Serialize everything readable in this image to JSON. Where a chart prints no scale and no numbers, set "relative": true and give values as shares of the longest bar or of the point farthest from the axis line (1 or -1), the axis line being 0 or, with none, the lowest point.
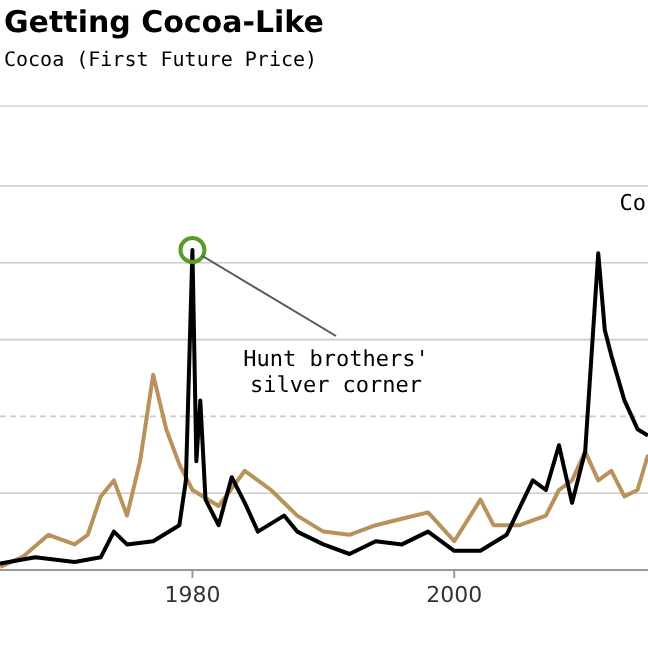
{
  "chart_data": {
    "type": "line",
    "title": "Getting Cocoa-Like",
    "subtitle": "Cocoa (First Future Price)",
    "relative": true,
    "ref_lines": [
      {
        "axis": "y",
        "value": 0.48,
        "line_style": "dashed",
        "color": "#cccccc"
      }
    ],
    "grid": "y",
    "xlim": [
      1965.3,
      2014.8
    ],
    "xticks": [
      1980,
      2000
    ],
    "annotations": [
      {
        "text": "Hunt brothers' silver corner",
        "x": 1980,
        "y": 1
      },
      "Co"
    ],
    "series": [
      {
        "color": "#b8925a",
        "x": [
          1965.3,
          1967,
          1969,
          1971,
          1972,
          1973,
          1974,
          1975,
          1976,
          1977,
          1978,
          1979,
          1980,
          1982,
          1984,
          1986,
          1988,
          1990,
          1992,
          1994,
          1996,
          1998,
          2000,
          2002,
          2003,
          2005,
          2007,
          2008,
          2009,
          2010,
          2011,
          2012,
          2013,
          2014,
          2014.8
        ],
        "values": [
          0.01,
          0.04,
          0.11,
          0.08,
          0.11,
          0.23,
          0.28,
          0.17,
          0.34,
          0.61,
          0.44,
          0.33,
          0.25,
          0.2,
          0.31,
          0.25,
          0.17,
          0.12,
          0.11,
          0.14,
          0.16,
          0.18,
          0.09,
          0.22,
          0.14,
          0.14,
          0.17,
          0.25,
          0.28,
          0.37,
          0.28,
          0.31,
          0.23,
          0.25,
          0.36
        ]
      },
      {
        "color": "#000000",
        "x": [
          1965.3,
          1968,
          1971,
          1973,
          1974,
          1975,
          1977,
          1979,
          1979.5,
          1980,
          1980.3,
          1980.6,
          1981,
          1982,
          1983,
          1984,
          1985,
          1987,
          1988,
          1990,
          1992,
          1994,
          1996,
          1998,
          2000,
          2002,
          2004,
          2006,
          2007,
          2008,
          2009,
          2010,
          2011,
          2011.5,
          2012,
          2013,
          2014,
          2014.8
        ],
        "values": [
          0.02,
          0.04,
          0.025,
          0.04,
          0.12,
          0.08,
          0.09,
          0.14,
          0.28,
          1,
          0.34,
          0.53,
          0.22,
          0.14,
          0.29,
          0.21,
          0.12,
          0.17,
          0.12,
          0.08,
          0.05,
          0.09,
          0.08,
          0.12,
          0.06,
          0.06,
          0.11,
          0.28,
          0.25,
          0.39,
          0.21,
          0.37,
          0.99,
          0.75,
          0.67,
          0.53,
          0.44,
          0.42
        ]
      }
    ]
  }
}
